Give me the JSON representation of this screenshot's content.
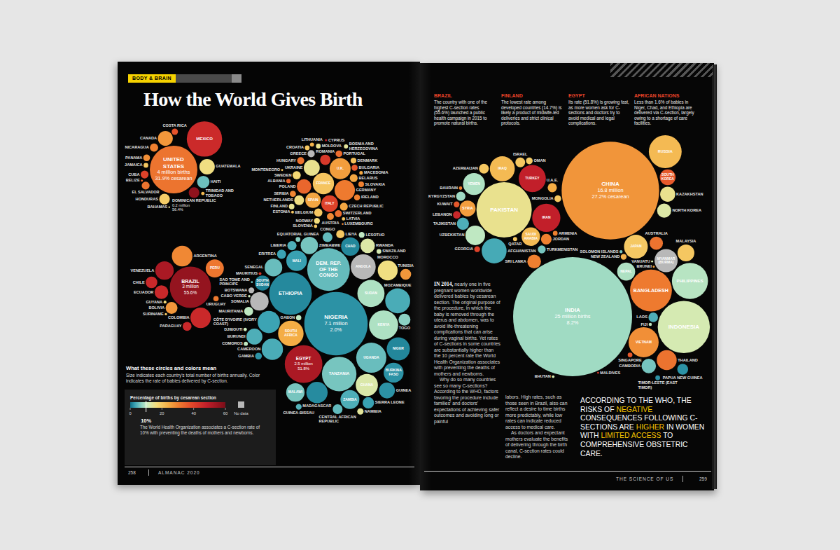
{
  "chart_data": {
    "type": "bubble",
    "title": "How the World Gives Birth",
    "categories": [
      "CANADA",
      "UNITED STATES",
      "MEXICO",
      "BAHAMAS",
      "CUBA",
      "JAMAICA",
      "HAITI",
      "DOMINICAN REPUBLIC",
      "BELIZE",
      "GUATEMALA",
      "HONDURAS",
      "EL SALVADOR",
      "NICARAGUA",
      "COSTA RICA",
      "PANAMA",
      "TRINIDAD AND TOBAGO",
      "COLOMBIA",
      "VENEZUELA",
      "GUYANA",
      "SURINAME",
      "ECUADOR",
      "BRAZIL",
      "PERU",
      "BOLIVIA",
      "CHILE",
      "PARAGUAY",
      "URUGUAY",
      "ARGENTINA",
      "IRELAND",
      "U.K.",
      "NORWAY",
      "SWEDEN",
      "FINLAND",
      "POLAND",
      "ESTONIA",
      "LATVIA",
      "LITHUANIA",
      "DENMARK",
      "NETHERLANDS",
      "BELARUS",
      "BELGIUM",
      "LUXEMBOURG",
      "GERMANY",
      "UKRAINE",
      "MOLDOVA",
      "CZECH REPUBLIC",
      "HUNGARY",
      "FRANCE",
      "SPAIN",
      "PORTUGAL",
      "SWITZERLAND",
      "AUSTRIA",
      "ITALY",
      "ROMANIA",
      "SERBIA",
      "BULGARIA",
      "MACEDONIA",
      "GREECE",
      "CYPRUS",
      "SLOVENIA",
      "SLOVAKIA",
      "CROATIA",
      "BOSNIA AND HERZEGOVINA",
      "MONTENEGRO",
      "ALBANIA",
      "MOROCCO",
      "TUNISIA",
      "LIBYA",
      "EGYPT",
      "DJIBOUTI",
      "ERITREA",
      "MAURITANIA",
      "BURKINA FASO",
      "MALI",
      "NIGER",
      "CHAD",
      "SUDAN",
      "ETHIOPIA",
      "SOUTH SUDAN",
      "SOMALIA",
      "CABO VERDE",
      "GAMBIA",
      "SENEGAL",
      "GUINEA",
      "GUINEA-BISSAU",
      "SIERRA LEONE",
      "LIBERIA",
      "CÔTE D'IVOIRE (IVORY COAST)",
      "GHANA",
      "TOGO",
      "NIGERIA",
      "CAMEROON",
      "CENTRAL AFRICAN REPUBLIC",
      "EQUATORIAL GUINEA",
      "SAO TOME AND PRINCIPE",
      "GABON",
      "CONGO",
      "DEM. REP. OF THE CONGO",
      "UGANDA",
      "KENYA",
      "RWANDA",
      "BURUNDI",
      "TANZANIA",
      "ANGOLA",
      "ZAMBIA",
      "MALAWI",
      "MOZAMBIQUE",
      "ZIMBABWE",
      "NAMIBIA",
      "BOTSWANA",
      "SOUTH AFRICA",
      "SWAZILAND",
      "LESOTHO",
      "MADAGASCAR",
      "COMOROS",
      "MAURITIUS",
      "TURKEY",
      "GEORGIA",
      "ARMENIA",
      "AZERBAIJAN",
      "SYRIA",
      "LEBANON",
      "JORDAN",
      "IRAQ",
      "IRAN",
      "ISRAEL",
      "SAUDI ARABIA",
      "KUWAIT",
      "BAHRAIN",
      "QATAR",
      "U.A.E.",
      "OMAN",
      "YEMEN",
      "AFGHANISTAN",
      "KYRGYZSTAN",
      "UZBEKISTAN",
      "TURKMENISTAN",
      "TAJIKISTAN",
      "PAKISTAN",
      "RUSSIA",
      "KAZAKHSTAN",
      "MONGOLIA",
      "CHINA",
      "NORTH KOREA",
      "SOUTH KOREA",
      "JAPAN",
      "INDIA",
      "NEPAL",
      "BHUTAN",
      "BANGLADESH",
      "SRI LANKA",
      "MALDIVES",
      "MYANMAR (BURMA)",
      "LAOS",
      "THAILAND",
      "VIETNAM",
      "CAMBODIA",
      "BRUNEI",
      "PHILIPPINES",
      "MALAYSIA",
      "SINGAPORE",
      "INDONESIA",
      "TIMOR-LESTE (EAST TIMOR)",
      "PAPUA NEW GUINEA",
      "SOLOMON ISLANDS",
      "VANUATU",
      "FIJI",
      "AUSTRALIA",
      "NEW ZEALAND"
    ],
    "values": [
      27,
      31.9,
      45.5,
      15,
      40,
      20,
      5.5,
      56.4,
      34,
      16,
      19,
      32,
      30,
      37,
      28,
      22,
      45.7,
      52,
      17,
      19,
      46,
      55.6,
      31.6,
      27,
      46,
      45.9,
      30.9,
      29,
      30,
      26.2,
      16.5,
      17.3,
      14.7,
      34,
      19.7,
      20,
      23,
      21,
      16,
      25,
      20,
      29,
      30.9,
      15,
      15,
      25,
      32,
      20.4,
      25,
      33,
      33,
      29,
      40,
      42,
      29.2,
      36,
      25,
      null,
      50,
      20,
      30,
      20,
      14,
      20,
      34,
      16,
      27,
      20,
      51.8,
      11,
      3,
      10,
      2,
      2.9,
      1.4,
      1.4,
      9,
      1.5,
      1,
      null,
      11,
      2,
      5.3,
      2,
      4.3,
      2.9,
      4,
      3.1,
      12.8,
      7,
      2,
      3.8,
      5,
      6.8,
      5.7,
      10,
      5,
      5.1,
      5.3,
      9,
      13,
      4,
      6,
      null,
      4,
      6,
      3.8,
      6,
      14,
      null,
      24,
      12,
      10,
      1.6,
      10,
      43,
      48,
      40,
      30,
      20,
      26,
      46,
      30,
      22,
      48,
      20,
      22,
      36,
      30,
      20,
      24,
      19,
      9,
      3.6,
      8,
      10,
      6,
      4,
      15,
      22,
      15,
      20,
      27.2,
      13,
      36,
      19.8,
      8.2,
      9,
      12,
      31,
      30,
      42,
      null,
      4,
      32,
      28,
      6,
      26,
      9.5,
      20,
      36,
      12,
      2,
      2,
      6,
      12,
      10,
      32,
      23
    ],
    "sizes": [
      0.39,
      4,
      2.2,
      0.005,
      0.11,
      0.04,
      0.27,
      0.2,
      0.008,
      0.42,
      0.2,
      0.11,
      0.12,
      0.07,
      0.08,
      0.02,
      0.74,
      0.6,
      0.015,
      0.01,
      0.33,
      3,
      0.58,
      0.25,
      0.24,
      0.14,
      0.05,
      0.75,
      0.065,
      0.78,
      0.06,
      0.12,
      0.055,
      0.37,
      0.014,
      0.02,
      0.03,
      0.058,
      0.17,
      0.11,
      0.12,
      0.006,
      0.73,
      0.45,
      0.04,
      0.11,
      0.09,
      0.8,
      0.42,
      0.08,
      0.085,
      0.085,
      0.49,
      0.19,
      0.066,
      0.066,
      0.023,
      0.09,
      0.01,
      0.02,
      0.057,
      0.04,
      0.03,
      0.007,
      0.035,
      0.7,
      0.21,
      0.12,
      2.5,
      0.02,
      0.15,
      0.14,
      0.7,
      0.75,
      0.95,
      0.6,
      1.3,
      3.2,
      0.4,
      0.6,
      0.01,
      0.08,
      0.55,
      0.44,
      0.06,
      0.23,
      0.15,
      0.87,
      0.87,
      0.25,
      7.1,
      0.8,
      0.17,
      0.04,
      0.007,
      0.05,
      0.17,
      3.2,
      1.6,
      1.5,
      0.37,
      0.45,
      2.1,
      1.1,
      0.63,
      0.6,
      1.1,
      0.53,
      0.07,
      0.06,
      1.15,
      0.04,
      0.06,
      0.8,
      0.03,
      0.014,
      1.3,
      0.06,
      0.04,
      0.17,
      0.45,
      0.1,
      0.2,
      1.1,
      1.4,
      0.17,
      0.6,
      0.06,
      0.02,
      0.03,
      0.15,
      0.08,
      0.85,
      1.1,
      0.15,
      0.68,
      0.11,
      0.26,
      5.4,
      1.9,
      0.4,
      0.08,
      16.8,
      0.35,
      0.44,
      1.0,
      25,
      0.57,
      0.013,
      3.1,
      0.33,
      0.007,
      0.94,
      0.16,
      0.7,
      1.6,
      0.37,
      0.007,
      2.3,
      0.5,
      0.04,
      4.8,
      0.04,
      0.21,
      0.017,
      0.007,
      0.018,
      0.31,
      0.06
    ],
    "size_labels": [
      null,
      "4 million births",
      null,
      null,
      null,
      null,
      null,
      "0.2 million",
      null,
      null,
      null,
      null,
      null,
      null,
      null,
      null,
      null,
      null,
      null,
      null,
      null,
      "3 million",
      null,
      null,
      null,
      null,
      null,
      null,
      null,
      null,
      null,
      null,
      null,
      null,
      null,
      null,
      null,
      null,
      null,
      null,
      null,
      null,
      null,
      null,
      null,
      null,
      null,
      null,
      null,
      null,
      null,
      null,
      null,
      null,
      null,
      null,
      null,
      null,
      null,
      null,
      null,
      null,
      null,
      null,
      null,
      null,
      null,
      null,
      "2.5 million",
      null,
      null,
      null,
      null,
      null,
      null,
      null,
      null,
      null,
      null,
      null,
      null,
      null,
      null,
      null,
      null,
      null,
      null,
      null,
      null,
      null,
      "7.1 million",
      null,
      null,
      null,
      null,
      null,
      null,
      null,
      null,
      null,
      null,
      null,
      null,
      null,
      null,
      null,
      null,
      null,
      null,
      null,
      null,
      null,
      null,
      null,
      null,
      null,
      null,
      null,
      null,
      null,
      null,
      null,
      null,
      null,
      null,
      null,
      null,
      null,
      null,
      null,
      null,
      null,
      null,
      null,
      null,
      null,
      null,
      null,
      null,
      null,
      null,
      null,
      "16.8 million",
      null,
      null,
      null,
      "25 million births",
      null,
      null,
      null,
      null,
      null,
      null,
      null,
      null,
      null,
      null,
      null,
      null,
      null,
      null,
      null,
      null,
      null,
      null,
      null,
      null,
      null,
      null
    ],
    "value_labels": [
      null,
      "31.9% cesarean",
      null,
      null,
      null,
      null,
      null,
      "56.4%",
      null,
      null,
      null,
      null,
      null,
      null,
      null,
      null,
      null,
      null,
      null,
      null,
      null,
      "55.6%",
      null,
      null,
      null,
      null,
      null,
      null,
      null,
      null,
      null,
      null,
      null,
      null,
      null,
      null,
      null,
      null,
      null,
      null,
      null,
      null,
      null,
      null,
      null,
      null,
      null,
      null,
      null,
      null,
      null,
      null,
      null,
      null,
      null,
      null,
      null,
      null,
      null,
      null,
      null,
      null,
      null,
      null,
      null,
      null,
      null,
      null,
      "51.8%",
      null,
      null,
      null,
      null,
      null,
      null,
      null,
      null,
      null,
      null,
      null,
      null,
      null,
      null,
      null,
      null,
      null,
      null,
      null,
      null,
      null,
      "2.0%",
      null,
      null,
      null,
      null,
      null,
      null,
      null,
      null,
      null,
      null,
      null,
      null,
      null,
      null,
      null,
      null,
      null,
      null,
      null,
      null,
      null,
      null,
      null,
      null,
      null,
      null,
      null,
      null,
      null,
      null,
      null,
      null,
      null,
      null,
      null,
      null,
      null,
      null,
      null,
      null,
      null,
      null,
      null,
      null,
      null,
      null,
      null,
      null,
      null,
      null,
      null,
      "27.2% cesarean",
      null,
      null,
      null,
      "8.2%",
      null,
      null,
      null,
      null,
      null,
      null,
      null,
      null,
      null,
      null,
      null,
      null,
      null,
      null,
      null,
      null,
      null,
      null,
      null,
      null,
      null,
      null
    ],
    "colorbar": {
      "heading": "What these circles and colors mean",
      "description": "Size indicates each country's total number of births annually. Color indicates the rate of babies delivered by C-section.",
      "title": "Percentage of births by cesarean section",
      "range": [
        0,
        60
      ],
      "ticks": [
        0,
        20,
        40,
        60
      ],
      "reference": {
        "value": 10,
        "label": "10%",
        "note": "The World Health Organization associates a C-section rate of 10% with preventing the deaths of mothers and newborns."
      },
      "no_data": "No data"
    }
  },
  "page": {
    "section_tag": "BODY & BRAIN",
    "left_folio": {
      "number": "258",
      "running_head": "ALMANAC 2020"
    },
    "right_folio": {
      "running_head": "THE SCIENCE OF US",
      "number": "259"
    },
    "annotations": [
      {
        "heading": "BRAZIL",
        "text": "The country with one of the highest C-section rates (55.6%) launched a public health campaign in 2015 to promote natural births."
      },
      {
        "heading": "FINLAND",
        "text": "The lowest rate among developed countries (14.7%) is likely a product of midwife-led deliveries and strict clinical protocols."
      },
      {
        "heading": "EGYPT",
        "text": "Its rate (51.8%) is growing fast, as more women ask for C-sections and doctors try to avoid medical and legal complications."
      },
      {
        "heading": "AFRICAN NATIONS",
        "text": "Less than 1.6% of babies in Niger, Chad, and Ethiopia are delivered via C-section, largely owing to a shortage of care facilities."
      }
    ],
    "body": {
      "lead": "IN 2014,",
      "columns": [
        [
          "nearly one in five pregnant women worldwide delivered babies by cesarean section. The original purpose of the procedure, in which the baby is removed through the uterus and abdomen, was to avoid life-threatening complications that can arise during vaginal births. Yet rates of C-sections in some countries are substantially higher than the 10 percent rate the World Health Organization associates with preventing the deaths of mothers and newborns.",
          "Why do so many countries see so many C-sections? According to the WHO, factors favoring the procedure include families' and doctors' expectations of achieving safer outcomes and avoiding long or painful"
        ],
        [
          "labors. High rates, such as those seen in Brazil, also can reflect a desire to time births more predictably, while low rates can indicate reduced access to medical care.",
          "As doctors and expectant mothers evaluate the benefits of delivering through the birth canal, C-section rates could decline."
        ]
      ]
    },
    "callout": [
      "ACCORDING TO THE WHO, THE RISKS OF ",
      "NEGATIVE",
      " CONSEQUENCES FOLLOWING C-SECTIONS ARE ",
      "HIGHER",
      " IN WOMEN WITH ",
      "LIMITED ACCESS",
      " TO COMPREHENSIVE OBSTETRIC CARE."
    ]
  }
}
